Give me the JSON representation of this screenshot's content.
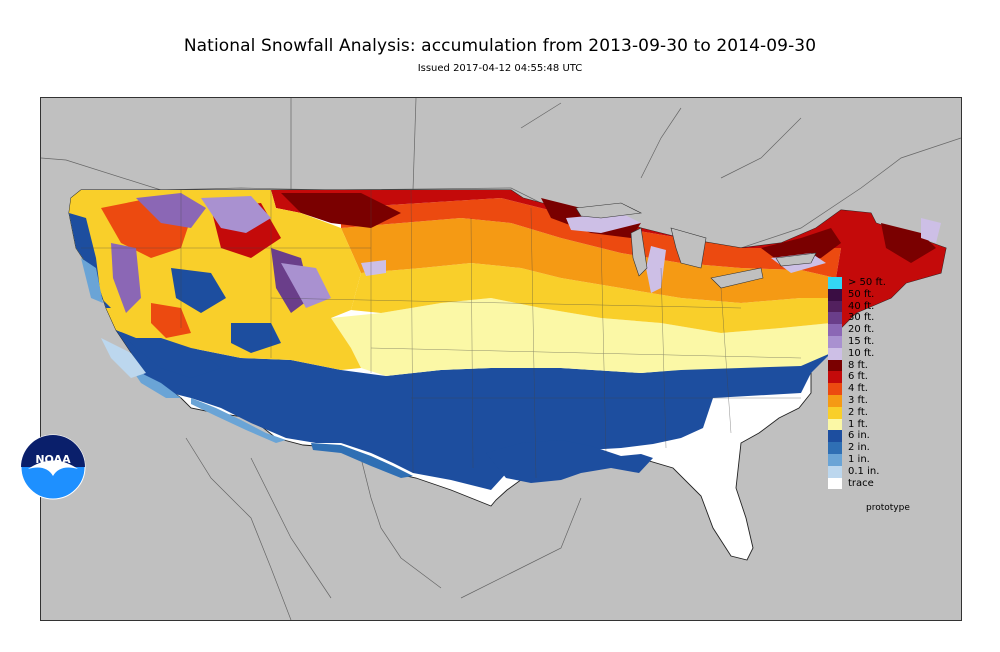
{
  "title": "National Snowfall Analysis: accumulation from 2013-09-30 to 2014-09-30",
  "subtitle": "Issued 2017-04-12 04:55:48 UTC",
  "logo_text": "NOAA",
  "footer_note": "prototype",
  "colors": {
    "ocean_land_background": "#c0c0c0",
    "border": "#555555"
  },
  "legend": [
    {
      "label": "> 50 ft.",
      "color": "#33d6f5"
    },
    {
      "label": "50 ft.",
      "color": "#3a0d43"
    },
    {
      "label": "40 ft.",
      "color": "#52205e"
    },
    {
      "label": "30 ft.",
      "color": "#6a3e8a"
    },
    {
      "label": "20 ft.",
      "color": "#8b67b5"
    },
    {
      "label": "15 ft.",
      "color": "#a991d0"
    },
    {
      "label": "10 ft.",
      "color": "#cdbfe6"
    },
    {
      "label": "8 ft.",
      "color": "#7a0000"
    },
    {
      "label": "6 ft.",
      "color": "#c40a0a"
    },
    {
      "label": "4 ft.",
      "color": "#ec4a10"
    },
    {
      "label": "3 ft.",
      "color": "#f59a14"
    },
    {
      "label": "2 ft.",
      "color": "#f9cf2a"
    },
    {
      "label": "1 ft.",
      "color": "#fbf8a6"
    },
    {
      "label": "6 in.",
      "color": "#1d4e9f"
    },
    {
      "label": "2 in.",
      "color": "#2f6fb4"
    },
    {
      "label": "1 in.",
      "color": "#6aa4d6"
    },
    {
      "label": "0.1 in.",
      "color": "#bcd7ee"
    },
    {
      "label": "trace",
      "color": "#ffffff"
    }
  ]
}
